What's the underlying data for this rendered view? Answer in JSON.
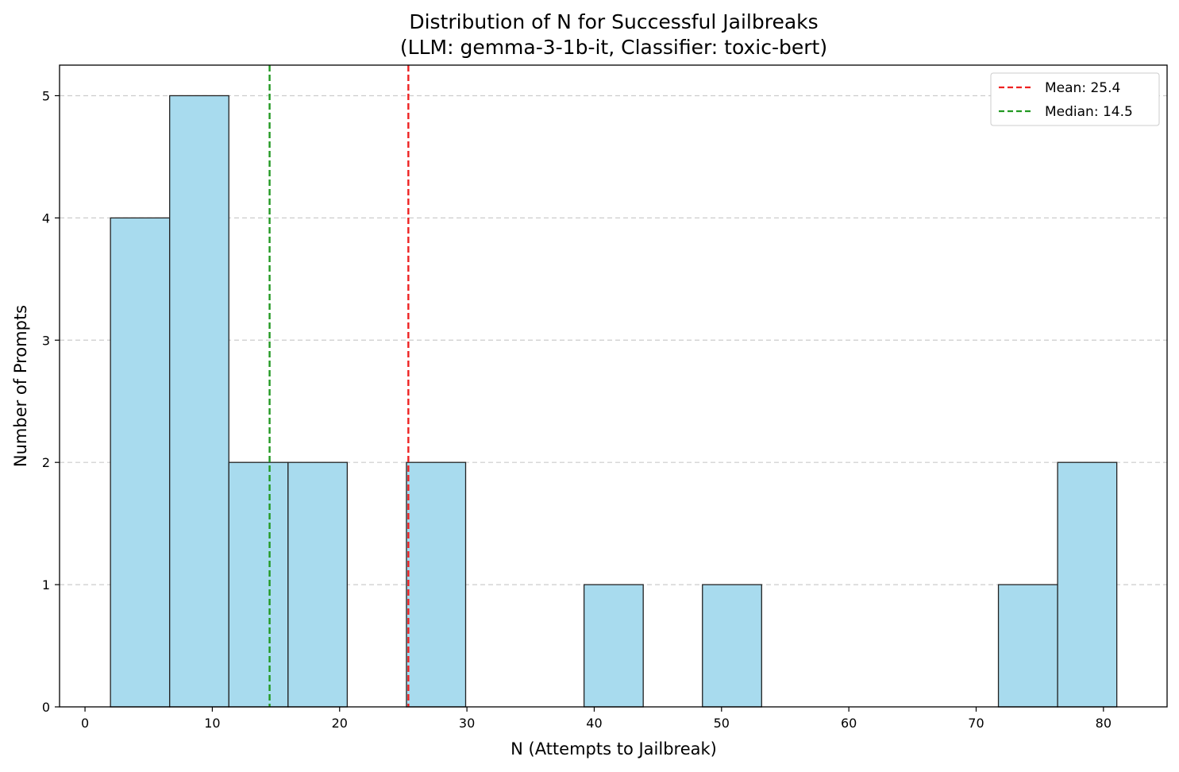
{
  "chart_data": {
    "type": "bar",
    "title_line1": "Distribution of N for Successful Jailbreaks",
    "title_line2": "(LLM: gemma-3-1b-it, Classifier: toxic-bert)",
    "xlabel": "N (Attempts to Jailbreak)",
    "ylabel": "Number of Prompts",
    "xlim": [
      -2,
      85
    ],
    "ylim": [
      0,
      5.25
    ],
    "xticks": [
      0,
      10,
      20,
      30,
      40,
      50,
      60,
      70,
      80
    ],
    "yticks": [
      0,
      1,
      2,
      3,
      4,
      5
    ],
    "grid": "y-dashed",
    "bins": [
      {
        "x0": 2.0,
        "x1": 6.65,
        "count": 4
      },
      {
        "x0": 6.65,
        "x1": 11.3,
        "count": 5
      },
      {
        "x0": 11.3,
        "x1": 15.95,
        "count": 2
      },
      {
        "x0": 15.95,
        "x1": 20.6,
        "count": 2
      },
      {
        "x0": 25.25,
        "x1": 29.9,
        "count": 2
      },
      {
        "x0": 39.2,
        "x1": 43.85,
        "count": 1
      },
      {
        "x0": 48.5,
        "x1": 53.15,
        "count": 1
      },
      {
        "x0": 71.75,
        "x1": 76.4,
        "count": 1
      },
      {
        "x0": 76.4,
        "x1": 81.05,
        "count": 2
      }
    ],
    "bar_color": "#a8dbee",
    "bar_edge": "#222222",
    "lines": [
      {
        "label": "Mean: 25.4",
        "x": 25.4,
        "color": "#ee2222"
      },
      {
        "label": "Median: 14.5",
        "x": 14.5,
        "color": "#229922"
      }
    ],
    "legend_position": "upper right"
  }
}
